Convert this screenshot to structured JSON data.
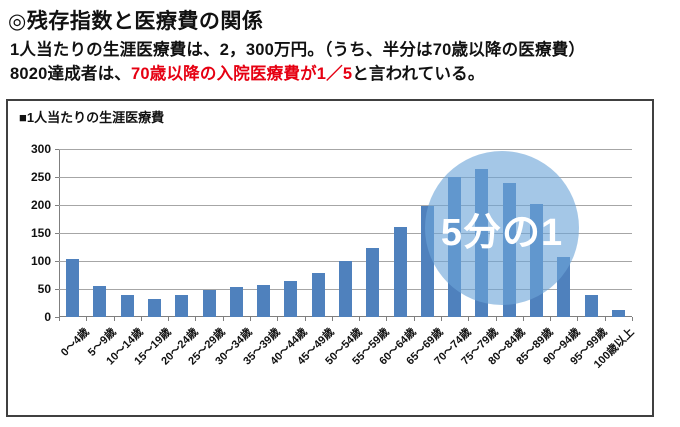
{
  "page": {
    "title": "◎残存指数と医療費の関係",
    "subtitle_line1": "1人当たりの生涯医療費は、2，300万円。（うち、半分は70歳以降の医療費）",
    "subtitle_line2": {
      "prefix": "8020達成者は、",
      "highlight": "70歳以降の入院医療費が1／5",
      "suffix": "と言われている。"
    }
  },
  "chart_data": {
    "type": "bar",
    "title": "■1人当たりの生涯医療費",
    "categories": [
      "0～4歳",
      "5～9歳",
      "10～14歳",
      "15～19歳",
      "20～24歳",
      "25～29歳",
      "30～34歳",
      "35～39歳",
      "40～44歳",
      "45～49歳",
      "50～54歳",
      "55～59歳",
      "60～64歳",
      "65～69歳",
      "70～74歳",
      "75～79歳",
      "80～84歳",
      "85～89歳",
      "90～94歳",
      "95～99歳",
      "100歳以上"
    ],
    "values": [
      103,
      55,
      39,
      33,
      39,
      49,
      54,
      58,
      65,
      78,
      100,
      124,
      161,
      199,
      250,
      264,
      240,
      202,
      107,
      40,
      12
    ],
    "xlabel": "",
    "ylabel": "",
    "ylim": [
      0,
      300
    ],
    "yticks": [
      0,
      50,
      100,
      150,
      200,
      250,
      300
    ],
    "grid": true,
    "legend_position": "none",
    "annotation": {
      "label": "5分の1",
      "shape": "circle",
      "covers": "65～89歳の棒の上"
    }
  },
  "colors": {
    "bar": "#4f81bd",
    "annotation_circle": "rgba(108,165,217,0.62)",
    "highlight_text": "#e60012",
    "gridline": "#a6a6a6",
    "axis": "#7f7f7f",
    "panel_border": "#404040",
    "text": "#111111"
  }
}
